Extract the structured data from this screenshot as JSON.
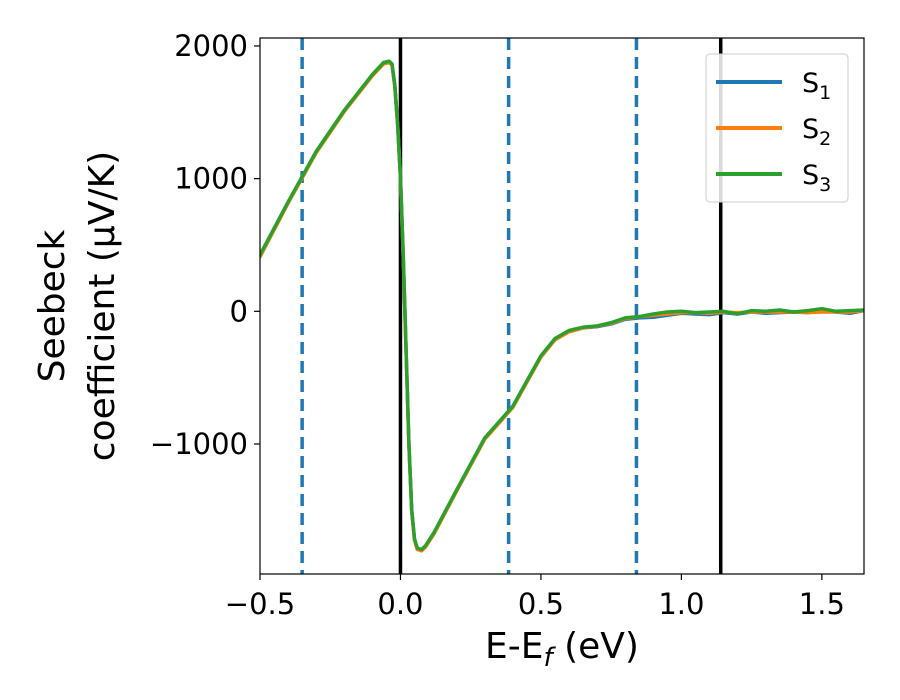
{
  "chart_data": {
    "type": "line",
    "xlabel": {
      "main": "E-E",
      "sub": "f",
      "tail": " (eV)"
    },
    "ylabel": {
      "line1": "Seebeck",
      "line2": "coefficient  (μV/K)"
    },
    "xlim": [
      -0.5,
      1.65
    ],
    "ylim": [
      -1980,
      2060
    ],
    "xticks": [
      {
        "value": -0.5,
        "label": "−0.5"
      },
      {
        "value": 0.0,
        "label": "0.0"
      },
      {
        "value": 0.5,
        "label": "0.5"
      },
      {
        "value": 1.0,
        "label": "1.0"
      },
      {
        "value": 1.5,
        "label": "1.5"
      }
    ],
    "yticks": [
      {
        "value": 2000,
        "label": "2000"
      },
      {
        "value": 1000,
        "label": "1000"
      },
      {
        "value": 0,
        "label": "0"
      },
      {
        "value": -1000,
        "label": "−1000"
      }
    ],
    "grid": false,
    "legend_position": "top-right",
    "vlines_solid": [
      0.0,
      1.14
    ],
    "vlines_dashed": [
      -0.35,
      0.385,
      0.84
    ],
    "vline_solid_color": "#000000",
    "vline_dashed_color": "#1f77b4",
    "series": [
      {
        "name": {
          "main": "S",
          "sub": "1"
        },
        "color": "#1f77b4",
        "x": [
          -0.5,
          -0.4,
          -0.3,
          -0.2,
          -0.1,
          -0.06,
          -0.04,
          -0.03,
          -0.02,
          -0.01,
          0.0,
          0.01,
          0.02,
          0.03,
          0.04,
          0.05,
          0.06,
          0.075,
          0.09,
          0.12,
          0.2,
          0.3,
          0.4,
          0.5,
          0.55,
          0.6,
          0.65,
          0.7,
          0.75,
          0.8,
          0.85,
          0.9,
          0.95,
          1.0,
          1.05,
          1.1,
          1.15,
          1.2,
          1.25,
          1.3,
          1.35,
          1.4,
          1.45,
          1.5,
          1.55,
          1.6,
          1.65
        ],
        "y": [
          420,
          820,
          1200,
          1510,
          1780,
          1870,
          1880,
          1860,
          1700,
          1400,
          1000,
          400,
          -300,
          -1000,
          -1500,
          -1720,
          -1790,
          -1800,
          -1770,
          -1670,
          -1350,
          -960,
          -720,
          -340,
          -210,
          -150,
          -125,
          -115,
          -95,
          -60,
          -50,
          -45,
          -30,
          -15,
          -20,
          -25,
          -10,
          -20,
          -5,
          -15,
          -10,
          -5,
          -10,
          0,
          -5,
          -15,
          5
        ]
      },
      {
        "name": {
          "main": "S",
          "sub": "2"
        },
        "color": "#ff7f0e",
        "x": [
          -0.5,
          -0.4,
          -0.3,
          -0.2,
          -0.1,
          -0.06,
          -0.04,
          -0.03,
          -0.02,
          -0.01,
          0.0,
          0.01,
          0.02,
          0.03,
          0.04,
          0.05,
          0.06,
          0.075,
          0.09,
          0.12,
          0.2,
          0.3,
          0.4,
          0.5,
          0.55,
          0.6,
          0.65,
          0.7,
          0.75,
          0.8,
          0.85,
          0.9,
          0.95,
          1.0,
          1.05,
          1.1,
          1.15,
          1.2,
          1.25,
          1.3,
          1.35,
          1.4,
          1.45,
          1.5,
          1.55,
          1.6,
          1.65
        ],
        "y": [
          410,
          815,
          1195,
          1505,
          1775,
          1865,
          1875,
          1855,
          1695,
          1395,
          995,
          395,
          -305,
          -1005,
          -1505,
          -1725,
          -1795,
          -1805,
          -1775,
          -1675,
          -1355,
          -965,
          -725,
          -345,
          -215,
          -155,
          -125,
          -112,
          -90,
          -55,
          -40,
          -30,
          -20,
          -10,
          -10,
          -15,
          -5,
          -10,
          -5,
          -5,
          -5,
          -5,
          -10,
          -5,
          -5,
          -5,
          5
        ]
      },
      {
        "name": {
          "main": "S",
          "sub": "3"
        },
        "color": "#2ca02c",
        "x": [
          -0.5,
          -0.4,
          -0.3,
          -0.2,
          -0.1,
          -0.06,
          -0.04,
          -0.03,
          -0.02,
          -0.01,
          0.0,
          0.01,
          0.02,
          0.03,
          0.04,
          0.05,
          0.06,
          0.075,
          0.09,
          0.12,
          0.2,
          0.3,
          0.4,
          0.5,
          0.55,
          0.6,
          0.65,
          0.7,
          0.75,
          0.8,
          0.85,
          0.9,
          0.95,
          1.0,
          1.05,
          1.1,
          1.15,
          1.2,
          1.25,
          1.3,
          1.35,
          1.4,
          1.45,
          1.5,
          1.55,
          1.6,
          1.65
        ],
        "y": [
          425,
          825,
          1205,
          1515,
          1785,
          1875,
          1885,
          1865,
          1705,
          1405,
          1005,
          405,
          -295,
          -995,
          -1495,
          -1715,
          -1785,
          -1795,
          -1765,
          -1665,
          -1345,
          -955,
          -715,
          -335,
          -205,
          -145,
          -120,
          -110,
          -85,
          -50,
          -40,
          -20,
          -5,
          0,
          -10,
          -5,
          0,
          -20,
          5,
          0,
          10,
          -5,
          5,
          20,
          0,
          5,
          10
        ]
      }
    ]
  }
}
